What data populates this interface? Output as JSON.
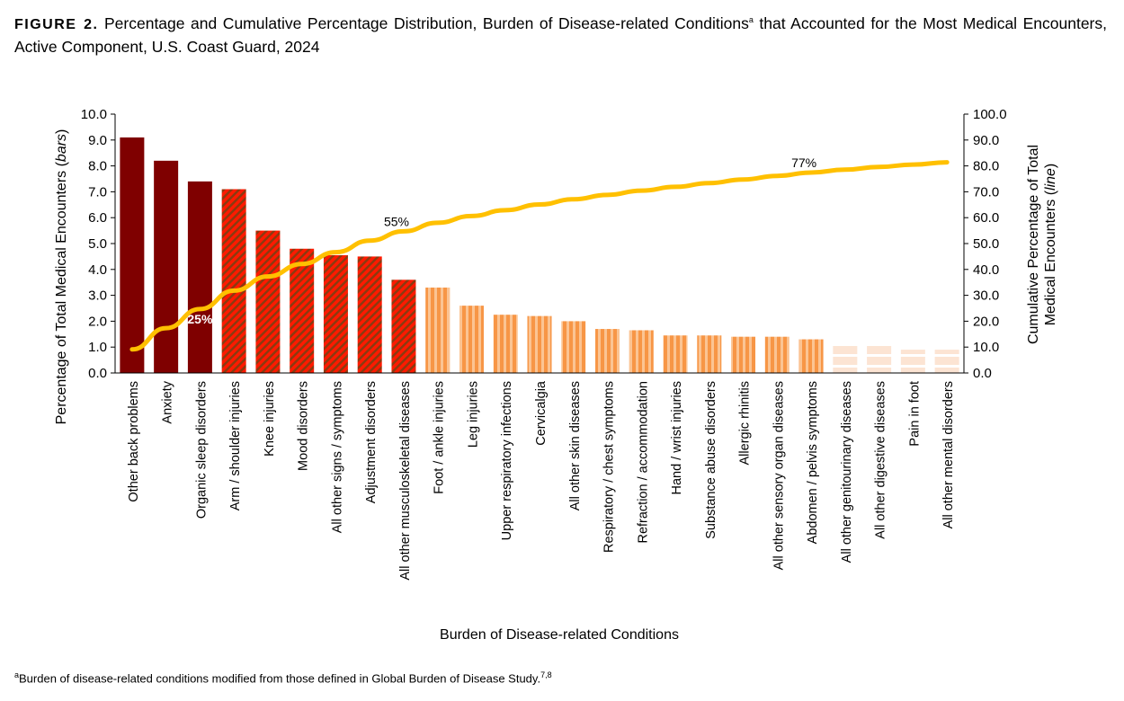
{
  "figure_label": "FIGURE 2.",
  "title": "Percentage and Cumulative Percentage Distribution, Burden of Disease-related Conditions",
  "title_sup": "a",
  "title_rest": " that Accounted for the Most Medical Encounters, Active Component, U.S. Coast Guard, 2024",
  "footnote_marker": "a",
  "footnote": "Burden of disease-related conditions modified from those defined in Global Burden of Disease Study.",
  "footnote_refs": "7,8",
  "chart_data": {
    "type": "bar",
    "xlabel": "Burden of Disease-related Conditions",
    "ylabel": "Percentage of Total Medical Encounters (bars)",
    "ylabel_main": "Percentage of Total Medical Encounters (",
    "ylabel_italic": "bars",
    "y2label_line1": "Cumulative Percentage of Total",
    "y2label_line2_main": "Medical Encounters (",
    "y2label_italic": "line",
    "ylim": [
      0,
      10
    ],
    "y2lim": [
      0,
      100
    ],
    "yticks": [
      "0.0",
      "1.0",
      "2.0",
      "3.0",
      "4.0",
      "5.0",
      "6.0",
      "7.0",
      "8.0",
      "9.0",
      "10.0"
    ],
    "y2ticks": [
      "0.0",
      "10.0",
      "20.0",
      "30.0",
      "40.0",
      "50.0",
      "60.0",
      "70.0",
      "80.0",
      "90.0",
      "100.0"
    ],
    "grid": false,
    "categories": [
      "Other back problems",
      "Anxiety",
      "Organic sleep disorders",
      "Arm / shoulder injuries",
      "Knee injuries",
      "Mood disorders",
      "All other signs / symptoms",
      "Adjustment disorders",
      "All other musculoskeletal diseases",
      "Foot / ankle injuries",
      "Leg injuries",
      "Upper respiratory infections",
      "Cervicalgia",
      "All other skin diseases",
      "Respiratory / chest symptoms",
      "Refraction / accommodation",
      "Hand / wrist injuries",
      "Substance abuse disorders",
      "Allergic rhinitis",
      "All other sensory organ diseases",
      "Abdomen / pelvis symptoms",
      "All other genitourinary diseases",
      "All other digestive diseases",
      "Pain in foot",
      "All other mental disorders"
    ],
    "series": [
      {
        "type": "bar",
        "axis": "left",
        "values": [
          9.1,
          8.2,
          7.4,
          7.1,
          5.5,
          4.8,
          4.55,
          4.5,
          3.6,
          3.3,
          2.6,
          2.25,
          2.2,
          2.0,
          1.7,
          1.65,
          1.45,
          1.45,
          1.4,
          1.4,
          1.3,
          1.1,
          1.05,
          0.9,
          0.9
        ],
        "fill_groups": [
          "dark",
          "dark",
          "dark",
          "hatch",
          "hatch",
          "hatch",
          "hatch",
          "hatch",
          "hatch",
          "stripe",
          "stripe",
          "stripe",
          "stripe",
          "stripe",
          "stripe",
          "stripe",
          "stripe",
          "stripe",
          "stripe",
          "stripe",
          "stripe",
          "light",
          "light",
          "light",
          "light"
        ]
      },
      {
        "type": "line",
        "axis": "right",
        "values": [
          9.1,
          17.3,
          24.7,
          31.8,
          37.3,
          42.1,
          46.65,
          51.15,
          54.75,
          58.05,
          60.65,
          62.9,
          65.1,
          67.1,
          68.8,
          70.45,
          71.9,
          73.35,
          74.75,
          76.15,
          77.45,
          78.55,
          79.6,
          80.5,
          81.4
        ]
      }
    ],
    "annotations": [
      {
        "text": "25%",
        "category": "Organic sleep disorders",
        "color": "#ffffff"
      },
      {
        "text": "55%",
        "category": "All other musculoskeletal diseases",
        "color": "#000000"
      },
      {
        "text": "77%",
        "category": "Abdomen / pelvis symptoms",
        "color": "#000000"
      }
    ],
    "colors": {
      "dark": "#7f0000",
      "hatch_a": "#ff1a00",
      "hatch_b": "#8b3a10",
      "stripe_a": "#f79646",
      "stripe_b": "#fbc493",
      "light": "#fce4d3",
      "line": "#ffc000"
    }
  }
}
